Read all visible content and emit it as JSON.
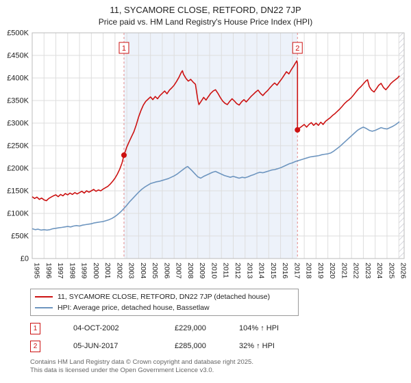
{
  "header": {
    "title": "11, SYCAMORE CLOSE, RETFORD, DN22 7JP",
    "subtitle": "Price paid vs. HM Land Registry's House Price Index (HPI)"
  },
  "chart_data": {
    "type": "line",
    "title": "11, SYCAMORE CLOSE, RETFORD, DN22 7JP",
    "subtitle": "Price paid vs. HM Land Registry's House Price Index (HPI)",
    "x_range": [
      1995,
      2026.45
    ],
    "y_range": [
      0,
      500
    ],
    "y_unit": "GBP thousands",
    "y_ticks": [
      "£0",
      "£50K",
      "£100K",
      "£150K",
      "£200K",
      "£250K",
      "£300K",
      "£350K",
      "£400K",
      "£450K",
      "£500K"
    ],
    "x_ticks": [
      1995,
      1996,
      1997,
      1998,
      1999,
      2000,
      2001,
      2002,
      2003,
      2004,
      2005,
      2006,
      2007,
      2008,
      2009,
      2010,
      2011,
      2012,
      2013,
      2014,
      2015,
      2016,
      2017,
      2018,
      2019,
      2020,
      2021,
      2022,
      2023,
      2024,
      2025,
      2026
    ],
    "grid": true,
    "legend_position": "bottom-left",
    "colors": {
      "red": "#cc1111",
      "blue": "#6d95bf",
      "shade": "#edf2fa",
      "sale_dash": "#e38b8b",
      "grid": "#dddddd",
      "border": "#bbbbbb",
      "hatch": "#c8c8d2"
    },
    "shaded_region": [
      2002.76,
      2017.43
    ],
    "hatch_region": [
      2026.0,
      2026.45
    ],
    "series": [
      {
        "name": "11, SYCAMORE CLOSE, RETFORD, DN22 7JP (detached house)",
        "color": "#cc1111",
        "points": [
          [
            1995.0,
            137
          ],
          [
            1995.2,
            133
          ],
          [
            1995.4,
            136
          ],
          [
            1995.6,
            131
          ],
          [
            1995.8,
            134
          ],
          [
            1996.0,
            130
          ],
          [
            1996.2,
            128
          ],
          [
            1996.4,
            133
          ],
          [
            1996.6,
            136
          ],
          [
            1996.8,
            139
          ],
          [
            1997.0,
            141
          ],
          [
            1997.2,
            137
          ],
          [
            1997.4,
            142
          ],
          [
            1997.6,
            139
          ],
          [
            1997.8,
            144
          ],
          [
            1998.0,
            141
          ],
          [
            1998.2,
            145
          ],
          [
            1998.4,
            142
          ],
          [
            1998.6,
            146
          ],
          [
            1998.8,
            143
          ],
          [
            1999.0,
            146
          ],
          [
            1999.2,
            149
          ],
          [
            1999.4,
            145
          ],
          [
            1999.6,
            150
          ],
          [
            1999.8,
            147
          ],
          [
            2000.0,
            150
          ],
          [
            2000.2,
            153
          ],
          [
            2000.4,
            149
          ],
          [
            2000.6,
            152
          ],
          [
            2000.8,
            150
          ],
          [
            2001.0,
            154
          ],
          [
            2001.2,
            157
          ],
          [
            2001.4,
            160
          ],
          [
            2001.6,
            165
          ],
          [
            2001.8,
            171
          ],
          [
            2002.0,
            178
          ],
          [
            2002.2,
            187
          ],
          [
            2002.4,
            198
          ],
          [
            2002.6,
            212
          ],
          [
            2002.76,
            229
          ],
          [
            2003.0,
            247
          ],
          [
            2003.2,
            259
          ],
          [
            2003.4,
            270
          ],
          [
            2003.6,
            281
          ],
          [
            2003.8,
            296
          ],
          [
            2004.0,
            314
          ],
          [
            2004.2,
            328
          ],
          [
            2004.4,
            340
          ],
          [
            2004.6,
            348
          ],
          [
            2004.8,
            353
          ],
          [
            2005.0,
            358
          ],
          [
            2005.2,
            352
          ],
          [
            2005.4,
            359
          ],
          [
            2005.6,
            354
          ],
          [
            2005.8,
            361
          ],
          [
            2006.0,
            366
          ],
          [
            2006.2,
            371
          ],
          [
            2006.4,
            365
          ],
          [
            2006.6,
            373
          ],
          [
            2006.8,
            378
          ],
          [
            2007.0,
            384
          ],
          [
            2007.2,
            392
          ],
          [
            2007.4,
            401
          ],
          [
            2007.6,
            412
          ],
          [
            2007.7,
            416
          ],
          [
            2007.8,
            408
          ],
          [
            2008.0,
            399
          ],
          [
            2008.2,
            393
          ],
          [
            2008.4,
            397
          ],
          [
            2008.6,
            391
          ],
          [
            2008.8,
            386
          ],
          [
            2009.0,
            352
          ],
          [
            2009.1,
            341
          ],
          [
            2009.3,
            349
          ],
          [
            2009.5,
            357
          ],
          [
            2009.7,
            351
          ],
          [
            2009.9,
            359
          ],
          [
            2010.1,
            366
          ],
          [
            2010.3,
            371
          ],
          [
            2010.5,
            374
          ],
          [
            2010.7,
            366
          ],
          [
            2010.9,
            357
          ],
          [
            2011.1,
            349
          ],
          [
            2011.3,
            344
          ],
          [
            2011.5,
            341
          ],
          [
            2011.7,
            348
          ],
          [
            2011.9,
            354
          ],
          [
            2012.1,
            349
          ],
          [
            2012.3,
            343
          ],
          [
            2012.5,
            340
          ],
          [
            2012.7,
            347
          ],
          [
            2012.9,
            352
          ],
          [
            2013.1,
            347
          ],
          [
            2013.3,
            353
          ],
          [
            2013.5,
            359
          ],
          [
            2013.7,
            364
          ],
          [
            2013.9,
            369
          ],
          [
            2014.1,
            373
          ],
          [
            2014.3,
            366
          ],
          [
            2014.5,
            361
          ],
          [
            2014.7,
            367
          ],
          [
            2014.9,
            372
          ],
          [
            2015.1,
            378
          ],
          [
            2015.3,
            384
          ],
          [
            2015.5,
            389
          ],
          [
            2015.7,
            384
          ],
          [
            2015.9,
            391
          ],
          [
            2016.1,
            398
          ],
          [
            2016.3,
            406
          ],
          [
            2016.5,
            414
          ],
          [
            2016.7,
            409
          ],
          [
            2016.9,
            418
          ],
          [
            2017.1,
            426
          ],
          [
            2017.25,
            433
          ],
          [
            2017.38,
            438
          ],
          [
            2017.43,
            430
          ],
          [
            2017.43,
            285
          ],
          [
            2017.6,
            289
          ],
          [
            2017.8,
            293
          ],
          [
            2018.0,
            297
          ],
          [
            2018.2,
            291
          ],
          [
            2018.4,
            297
          ],
          [
            2018.6,
            301
          ],
          [
            2018.8,
            295
          ],
          [
            2019.0,
            300
          ],
          [
            2019.2,
            295
          ],
          [
            2019.4,
            302
          ],
          [
            2019.6,
            297
          ],
          [
            2019.8,
            304
          ],
          [
            2020.0,
            308
          ],
          [
            2020.2,
            312
          ],
          [
            2020.4,
            317
          ],
          [
            2020.6,
            321
          ],
          [
            2020.8,
            326
          ],
          [
            2021.0,
            331
          ],
          [
            2021.2,
            337
          ],
          [
            2021.4,
            343
          ],
          [
            2021.6,
            348
          ],
          [
            2021.8,
            352
          ],
          [
            2022.0,
            357
          ],
          [
            2022.2,
            363
          ],
          [
            2022.4,
            370
          ],
          [
            2022.6,
            376
          ],
          [
            2022.8,
            381
          ],
          [
            2023.0,
            387
          ],
          [
            2023.2,
            393
          ],
          [
            2023.35,
            396
          ],
          [
            2023.5,
            381
          ],
          [
            2023.7,
            373
          ],
          [
            2023.9,
            369
          ],
          [
            2024.1,
            376
          ],
          [
            2024.3,
            384
          ],
          [
            2024.5,
            388
          ],
          [
            2024.7,
            379
          ],
          [
            2024.9,
            374
          ],
          [
            2025.1,
            380
          ],
          [
            2025.3,
            387
          ],
          [
            2025.5,
            392
          ],
          [
            2025.7,
            396
          ],
          [
            2025.9,
            400
          ],
          [
            2026.05,
            405
          ]
        ]
      },
      {
        "name": "HPI: Average price, detached house, Bassetlaw",
        "color": "#6d95bf",
        "points": [
          [
            1995.0,
            66
          ],
          [
            1995.25,
            64
          ],
          [
            1995.5,
            65
          ],
          [
            1995.75,
            63
          ],
          [
            1996.0,
            64
          ],
          [
            1996.25,
            63
          ],
          [
            1996.5,
            64
          ],
          [
            1996.75,
            66
          ],
          [
            1997.0,
            67
          ],
          [
            1997.25,
            68
          ],
          [
            1997.5,
            69
          ],
          [
            1997.75,
            70
          ],
          [
            1998.0,
            71
          ],
          [
            1998.25,
            70
          ],
          [
            1998.5,
            72
          ],
          [
            1998.75,
            73
          ],
          [
            1999.0,
            72
          ],
          [
            1999.25,
            74
          ],
          [
            1999.5,
            75
          ],
          [
            1999.75,
            76
          ],
          [
            2000.0,
            77
          ],
          [
            2000.25,
            79
          ],
          [
            2000.5,
            80
          ],
          [
            2000.75,
            81
          ],
          [
            2001.0,
            82
          ],
          [
            2001.25,
            84
          ],
          [
            2001.5,
            86
          ],
          [
            2001.75,
            89
          ],
          [
            2002.0,
            93
          ],
          [
            2002.25,
            98
          ],
          [
            2002.5,
            104
          ],
          [
            2002.76,
            111
          ],
          [
            2003.0,
            118
          ],
          [
            2003.25,
            126
          ],
          [
            2003.5,
            133
          ],
          [
            2003.75,
            140
          ],
          [
            2004.0,
            147
          ],
          [
            2004.25,
            153
          ],
          [
            2004.5,
            158
          ],
          [
            2004.75,
            162
          ],
          [
            2005.0,
            166
          ],
          [
            2005.25,
            168
          ],
          [
            2005.5,
            170
          ],
          [
            2005.75,
            171
          ],
          [
            2006.0,
            173
          ],
          [
            2006.25,
            175
          ],
          [
            2006.5,
            177
          ],
          [
            2006.75,
            180
          ],
          [
            2007.0,
            183
          ],
          [
            2007.25,
            187
          ],
          [
            2007.5,
            192
          ],
          [
            2007.75,
            197
          ],
          [
            2008.0,
            202
          ],
          [
            2008.15,
            204
          ],
          [
            2008.3,
            200
          ],
          [
            2008.5,
            195
          ],
          [
            2008.75,
            188
          ],
          [
            2009.0,
            181
          ],
          [
            2009.25,
            178
          ],
          [
            2009.5,
            182
          ],
          [
            2009.75,
            185
          ],
          [
            2010.0,
            188
          ],
          [
            2010.25,
            191
          ],
          [
            2010.5,
            193
          ],
          [
            2010.75,
            190
          ],
          [
            2011.0,
            187
          ],
          [
            2011.25,
            184
          ],
          [
            2011.5,
            182
          ],
          [
            2011.75,
            180
          ],
          [
            2012.0,
            182
          ],
          [
            2012.25,
            180
          ],
          [
            2012.5,
            178
          ],
          [
            2012.75,
            180
          ],
          [
            2013.0,
            179
          ],
          [
            2013.25,
            181
          ],
          [
            2013.5,
            184
          ],
          [
            2013.75,
            186
          ],
          [
            2014.0,
            189
          ],
          [
            2014.25,
            191
          ],
          [
            2014.5,
            190
          ],
          [
            2014.75,
            192
          ],
          [
            2015.0,
            194
          ],
          [
            2015.25,
            196
          ],
          [
            2015.5,
            197
          ],
          [
            2015.75,
            199
          ],
          [
            2016.0,
            201
          ],
          [
            2016.25,
            204
          ],
          [
            2016.5,
            207
          ],
          [
            2016.75,
            210
          ],
          [
            2017.0,
            212
          ],
          [
            2017.25,
            215
          ],
          [
            2017.5,
            217
          ],
          [
            2017.75,
            219
          ],
          [
            2018.0,
            221
          ],
          [
            2018.25,
            223
          ],
          [
            2018.5,
            225
          ],
          [
            2018.75,
            226
          ],
          [
            2019.0,
            227
          ],
          [
            2019.25,
            228
          ],
          [
            2019.5,
            230
          ],
          [
            2019.75,
            231
          ],
          [
            2020.0,
            232
          ],
          [
            2020.25,
            234
          ],
          [
            2020.5,
            238
          ],
          [
            2020.75,
            243
          ],
          [
            2021.0,
            248
          ],
          [
            2021.25,
            254
          ],
          [
            2021.5,
            260
          ],
          [
            2021.75,
            266
          ],
          [
            2022.0,
            272
          ],
          [
            2022.25,
            278
          ],
          [
            2022.5,
            284
          ],
          [
            2022.75,
            288
          ],
          [
            2023.0,
            291
          ],
          [
            2023.25,
            288
          ],
          [
            2023.5,
            284
          ],
          [
            2023.75,
            282
          ],
          [
            2024.0,
            284
          ],
          [
            2024.25,
            287
          ],
          [
            2024.5,
            290
          ],
          [
            2024.75,
            288
          ],
          [
            2025.0,
            287
          ],
          [
            2025.25,
            290
          ],
          [
            2025.5,
            293
          ],
          [
            2025.75,
            297
          ],
          [
            2026.05,
            303
          ]
        ]
      }
    ],
    "sales": [
      {
        "label": "1",
        "x": 2002.76,
        "y": 229,
        "date": "04-OCT-2002",
        "price": "£229,000",
        "hpi": "104% ↑ HPI"
      },
      {
        "label": "2",
        "x": 2017.43,
        "y": 285,
        "date": "05-JUN-2017",
        "price": "£285,000",
        "hpi": "32% ↑ HPI"
      }
    ]
  },
  "footer": {
    "line1": "Contains HM Land Registry data © Crown copyright and database right 2025.",
    "line2": "This data is licensed under the Open Government Licence v3.0."
  }
}
